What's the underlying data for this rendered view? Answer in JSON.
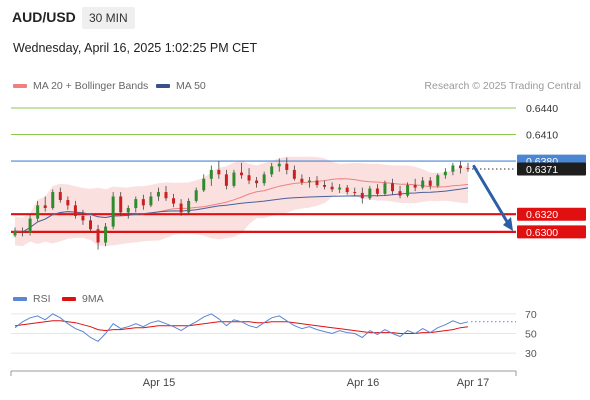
{
  "header": {
    "symbol": "AUD/USD",
    "timeframe": "30 MIN",
    "timestamp": "Wednesday, April 16, 2025 1:02:25 PM CET"
  },
  "legend": {
    "ma20_label": "MA 20 + Bollinger Bands",
    "ma50_label": "MA 50",
    "credit": "Research © 2025 Trading Central",
    "rsi_label": "RSI",
    "ma9_label": "9MA"
  },
  "colors": {
    "bullish": "#2e8b2e",
    "bearish": "#cc2020",
    "support": "#e01010",
    "resistance_blue": "#4a86d4",
    "target_green": "#8cc84b",
    "ma20": "#f08080",
    "ma50": "#4a5f9a",
    "band_fill": "#fadada",
    "rsi": "#5b86d6",
    "rsi_ma9": "#e01010",
    "arrow": "#2a5ea8"
  },
  "chart_data": [
    {
      "type": "candlestick",
      "ylim": [
        0.6266,
        0.6458
      ],
      "x_ticks": [
        "Apr 15",
        "Apr 16",
        "Apr 17"
      ],
      "current_price": 0.6371,
      "levels": [
        {
          "value": 0.644,
          "label": "0.6440",
          "kind": "target"
        },
        {
          "value": 0.641,
          "label": "0.6410",
          "kind": "target"
        },
        {
          "value": 0.638,
          "label": "0.6380",
          "kind": "pivot"
        },
        {
          "value": 0.6371,
          "label": "0.6371",
          "kind": "current"
        },
        {
          "value": 0.632,
          "label": "0.6320",
          "kind": "support"
        },
        {
          "value": 0.63,
          "label": "0.6300",
          "kind": "support"
        }
      ],
      "forecast_arrow": {
        "from": 0.6374,
        "to": 0.6301
      },
      "candles": [
        [
          0.6296,
          0.6305,
          0.6294,
          0.6301
        ],
        [
          0.6301,
          0.6305,
          0.6295,
          0.6299
        ],
        [
          0.6299,
          0.632,
          0.6296,
          0.6315
        ],
        [
          0.6315,
          0.6335,
          0.6312,
          0.633
        ],
        [
          0.633,
          0.634,
          0.6323,
          0.6327
        ],
        [
          0.6327,
          0.6348,
          0.6325,
          0.6345
        ],
        [
          0.6345,
          0.635,
          0.6333,
          0.6336
        ],
        [
          0.6336,
          0.634,
          0.6325,
          0.633
        ],
        [
          0.633,
          0.6335,
          0.6315,
          0.6318
        ],
        [
          0.6318,
          0.6325,
          0.6308,
          0.6313
        ],
        [
          0.6313,
          0.6318,
          0.63,
          0.6303
        ],
        [
          0.6303,
          0.6308,
          0.628,
          0.6288
        ],
        [
          0.6288,
          0.631,
          0.6284,
          0.6306
        ],
        [
          0.6306,
          0.6345,
          0.6303,
          0.634
        ],
        [
          0.634,
          0.6345,
          0.6318,
          0.6322
        ],
        [
          0.6322,
          0.633,
          0.6315,
          0.6327
        ],
        [
          0.6327,
          0.634,
          0.6322,
          0.6337
        ],
        [
          0.6337,
          0.6342,
          0.6325,
          0.633
        ],
        [
          0.633,
          0.6345,
          0.6328,
          0.634
        ],
        [
          0.634,
          0.635,
          0.6335,
          0.6345
        ],
        [
          0.6345,
          0.6352,
          0.6335,
          0.6338
        ],
        [
          0.6338,
          0.6343,
          0.6328,
          0.6332
        ],
        [
          0.6332,
          0.6337,
          0.6318,
          0.6322
        ],
        [
          0.6322,
          0.6338,
          0.632,
          0.6335
        ],
        [
          0.6335,
          0.635,
          0.6333,
          0.6347
        ],
        [
          0.6347,
          0.6365,
          0.6345,
          0.636
        ],
        [
          0.636,
          0.6375,
          0.6352,
          0.637
        ],
        [
          0.637,
          0.638,
          0.636,
          0.6365
        ],
        [
          0.6365,
          0.637,
          0.6348,
          0.6352
        ],
        [
          0.6352,
          0.637,
          0.635,
          0.6367
        ],
        [
          0.6367,
          0.6378,
          0.636,
          0.6364
        ],
        [
          0.6364,
          0.6372,
          0.6354,
          0.6358
        ],
        [
          0.6358,
          0.6362,
          0.635,
          0.6355
        ],
        [
          0.6355,
          0.6368,
          0.6352,
          0.6365
        ],
        [
          0.6365,
          0.6378,
          0.6362,
          0.6374
        ],
        [
          0.6374,
          0.6383,
          0.6368,
          0.6377
        ],
        [
          0.6377,
          0.6384,
          0.6365,
          0.637
        ],
        [
          0.637,
          0.6375,
          0.6358,
          0.636
        ],
        [
          0.636,
          0.6365,
          0.6353,
          0.6356
        ],
        [
          0.6356,
          0.6362,
          0.635,
          0.6358
        ],
        [
          0.6358,
          0.6363,
          0.635,
          0.6353
        ],
        [
          0.6353,
          0.6358,
          0.6348,
          0.6351
        ],
        [
          0.6351,
          0.6356,
          0.6345,
          0.6348
        ],
        [
          0.6348,
          0.6354,
          0.6344,
          0.635
        ],
        [
          0.635,
          0.6353,
          0.6342,
          0.6345
        ],
        [
          0.6345,
          0.635,
          0.634,
          0.6344
        ],
        [
          0.6344,
          0.635,
          0.6332,
          0.6338
        ],
        [
          0.6338,
          0.6352,
          0.6336,
          0.6349
        ],
        [
          0.6349,
          0.6354,
          0.634,
          0.6343
        ],
        [
          0.6343,
          0.6358,
          0.6341,
          0.6355
        ],
        [
          0.6355,
          0.636,
          0.6342,
          0.6346
        ],
        [
          0.6346,
          0.6352,
          0.6338,
          0.6341
        ],
        [
          0.6341,
          0.6356,
          0.6339,
          0.6353
        ],
        [
          0.6353,
          0.636,
          0.6346,
          0.635
        ],
        [
          0.635,
          0.6362,
          0.6348,
          0.6358
        ],
        [
          0.6358,
          0.6362,
          0.6348,
          0.6352
        ],
        [
          0.6352,
          0.6366,
          0.635,
          0.6364
        ],
        [
          0.6364,
          0.6372,
          0.636,
          0.6368
        ],
        [
          0.6368,
          0.6378,
          0.6364,
          0.6375
        ],
        [
          0.6375,
          0.638,
          0.6366,
          0.6372
        ],
        [
          0.6372,
          0.6378,
          0.6368,
          0.6371
        ]
      ]
    },
    {
      "type": "line",
      "series": [
        {
          "name": "RSI",
          "values": [
            56,
            62,
            66,
            68,
            64,
            70,
            66,
            60,
            55,
            52,
            46,
            42,
            50,
            60,
            55,
            57,
            60,
            57,
            61,
            63,
            60,
            57,
            53,
            58,
            62,
            67,
            70,
            65,
            58,
            64,
            62,
            58,
            56,
            61,
            66,
            68,
            63,
            58,
            55,
            57,
            54,
            52,
            50,
            53,
            51,
            50,
            46,
            53,
            49,
            54,
            50,
            47,
            53,
            50,
            55,
            51,
            56,
            59,
            63,
            60,
            62
          ]
        },
        {
          "name": "9MA",
          "values": [
            58,
            59,
            60,
            61,
            62,
            63,
            63,
            62,
            61,
            59,
            57,
            54,
            53,
            54,
            54,
            55,
            56,
            56,
            57,
            58,
            58,
            58,
            58,
            58,
            59,
            60,
            61,
            62,
            62,
            62,
            62,
            62,
            61,
            61,
            62,
            62,
            62,
            61,
            60,
            59,
            58,
            57,
            56,
            55,
            54,
            53,
            52,
            51,
            51,
            51,
            51,
            50,
            50,
            50,
            51,
            51,
            52,
            53,
            54,
            56,
            57
          ]
        }
      ],
      "ylim": [
        20,
        75
      ],
      "y_ticks": [
        70,
        50,
        30
      ]
    }
  ]
}
